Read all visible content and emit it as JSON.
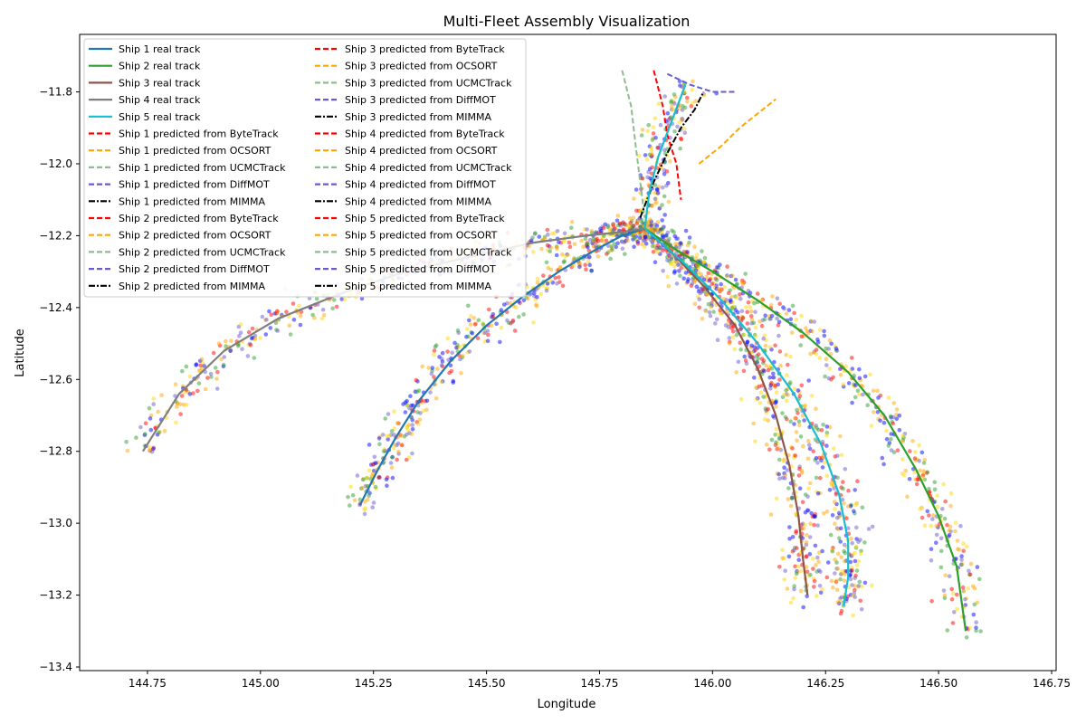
{
  "chart_data": {
    "type": "line",
    "title": "Multi-Fleet Assembly Visualization",
    "xlabel": "Longitude",
    "ylabel": "Latitude",
    "xlim": [
      144.6,
      146.76
    ],
    "ylim": [
      -13.41,
      -11.64
    ],
    "xticks": [
      144.75,
      145.0,
      145.25,
      145.5,
      145.75,
      146.0,
      146.25,
      146.5,
      146.75
    ],
    "xtick_labels": [
      "144.75",
      "145.00",
      "145.25",
      "145.50",
      "145.75",
      "146.00",
      "146.25",
      "146.50",
      "146.75"
    ],
    "yticks": [
      -13.4,
      -13.2,
      -13.0,
      -12.8,
      -12.6,
      -12.4,
      -12.2,
      -12.0,
      -11.8
    ],
    "ytick_labels": [
      "−13.4",
      "−13.2",
      "−13.0",
      "−12.8",
      "−12.6",
      "−12.4",
      "−12.2",
      "−12.0",
      "−11.8"
    ],
    "grid": false,
    "legend_position": "top-left",
    "colors": {
      "ship1": "#1f77b4",
      "ship2": "#2ca02c",
      "ship3": "#8c564b",
      "ship4": "#7f7f7f",
      "ship5": "#17becf",
      "bytetrack": "#ff0000",
      "ocsort": "#ffa500",
      "ucmctrack": "#8fbc8f",
      "diffmot": "#6a5acd",
      "mimma": "#000000"
    },
    "series": [
      {
        "name": "Ship 1 real track",
        "style": "solid",
        "color": "#1f77b4",
        "x": [
          145.22,
          145.26,
          145.3,
          145.35,
          145.42,
          145.5,
          145.58,
          145.66,
          145.74,
          145.8,
          145.85
        ],
        "y": [
          -12.95,
          -12.85,
          -12.76,
          -12.66,
          -12.55,
          -12.45,
          -12.37,
          -12.3,
          -12.24,
          -12.2,
          -12.18
        ]
      },
      {
        "name": "Ship 2 real track",
        "style": "solid",
        "color": "#2ca02c",
        "x": [
          145.85,
          145.92,
          146.0,
          146.1,
          146.2,
          146.3,
          146.38,
          146.45,
          146.5,
          146.54,
          146.56
        ],
        "y": [
          -12.18,
          -12.24,
          -12.3,
          -12.38,
          -12.47,
          -12.58,
          -12.7,
          -12.85,
          -12.98,
          -13.12,
          -13.3
        ]
      },
      {
        "name": "Ship 3 real track",
        "style": "solid",
        "color": "#8c564b",
        "x": [
          145.85,
          145.92,
          145.98,
          146.05,
          146.1,
          146.14,
          146.17,
          146.19,
          146.2,
          146.21
        ],
        "y": [
          -12.18,
          -12.26,
          -12.34,
          -12.45,
          -12.57,
          -12.7,
          -12.84,
          -12.98,
          -13.1,
          -13.2
        ]
      },
      {
        "name": "Ship 4 real track",
        "style": "solid",
        "color": "#7f7f7f",
        "x": [
          144.74,
          144.82,
          144.92,
          145.04,
          145.18,
          145.32,
          145.46,
          145.6,
          145.72,
          145.8,
          145.85
        ],
        "y": [
          -12.8,
          -12.64,
          -12.52,
          -12.43,
          -12.36,
          -12.3,
          -12.26,
          -12.22,
          -12.2,
          -12.19,
          -12.18
        ]
      },
      {
        "name": "Ship 5 real track",
        "style": "solid",
        "color": "#17becf",
        "x": [
          145.85,
          145.86,
          145.88,
          145.91,
          145.94,
          145.85,
          145.94,
          146.02,
          146.1,
          146.18,
          146.24,
          146.28,
          146.3,
          146.3,
          146.29
        ],
        "y": [
          -12.18,
          -12.08,
          -11.98,
          -11.88,
          -11.78,
          -12.18,
          -12.28,
          -12.38,
          -12.5,
          -12.64,
          -12.78,
          -12.92,
          -13.05,
          -13.15,
          -13.23
        ]
      },
      {
        "name": "Ship 1 predicted from ByteTrack",
        "style": "dashed",
        "color": "#ff0000"
      },
      {
        "name": "Ship 1 predicted from OCSORT",
        "style": "dashed",
        "color": "#ffa500"
      },
      {
        "name": "Ship 1 predicted from UCMCTrack",
        "style": "dashed",
        "color": "#8fbc8f"
      },
      {
        "name": "Ship 1 predicted from DiffMOT",
        "style": "dashed",
        "color": "#6a5acd"
      },
      {
        "name": "Ship 1 predicted from MIMMA",
        "style": "dashdot",
        "color": "#000000"
      },
      {
        "name": "Ship 2 predicted from ByteTrack",
        "style": "dashed",
        "color": "#ff0000"
      },
      {
        "name": "Ship 2 predicted from OCSORT",
        "style": "dashed",
        "color": "#ffa500"
      },
      {
        "name": "Ship 2 predicted from UCMCTrack",
        "style": "dashed",
        "color": "#8fbc8f"
      },
      {
        "name": "Ship 2 predicted from DiffMOT",
        "style": "dashed",
        "color": "#6a5acd"
      },
      {
        "name": "Ship 2 predicted from MIMMA",
        "style": "dashdot",
        "color": "#000000"
      },
      {
        "name": "Ship 3 predicted from ByteTrack",
        "style": "dashed",
        "color": "#ff0000",
        "x": [
          145.87,
          145.89,
          145.9,
          145.92,
          145.93
        ],
        "y": [
          -11.74,
          -11.84,
          -11.92,
          -12.0,
          -12.1
        ]
      },
      {
        "name": "Ship 3 predicted from OCSORT",
        "style": "dashed",
        "color": "#ffa500",
        "x": [
          145.97,
          146.02,
          146.06,
          146.1,
          146.14
        ],
        "y": [
          -12.0,
          -11.95,
          -11.9,
          -11.86,
          -11.82
        ]
      },
      {
        "name": "Ship 3 predicted from UCMCTrack",
        "style": "dashed",
        "color": "#8fbc8f",
        "x": [
          145.8,
          145.82,
          145.83,
          145.84,
          145.85
        ],
        "y": [
          -11.74,
          -11.84,
          -11.95,
          -12.05,
          -12.15
        ]
      },
      {
        "name": "Ship 3 predicted from DiffMOT",
        "style": "dashed",
        "color": "#6a5acd",
        "x": [
          145.9,
          145.95,
          146.0,
          146.03,
          146.05
        ],
        "y": [
          -11.75,
          -11.78,
          -11.8,
          -11.8,
          -11.8
        ]
      },
      {
        "name": "Ship 3 predicted from MIMMA",
        "style": "dashdot",
        "color": "#000000",
        "x": [
          145.84,
          145.87,
          145.9,
          145.93,
          145.96,
          145.98
        ],
        "y": [
          -12.15,
          -12.05,
          -11.97,
          -11.9,
          -11.85,
          -11.8
        ]
      },
      {
        "name": "Ship 4 predicted from ByteTrack",
        "style": "dashed",
        "color": "#ff0000"
      },
      {
        "name": "Ship 4 predicted from OCSORT",
        "style": "dashed",
        "color": "#ffa500"
      },
      {
        "name": "Ship 4 predicted from UCMCTrack",
        "style": "dashed",
        "color": "#8fbc8f"
      },
      {
        "name": "Ship 4 predicted from DiffMOT",
        "style": "dashed",
        "color": "#6a5acd"
      },
      {
        "name": "Ship 4 predicted from MIMMA",
        "style": "dashdot",
        "color": "#000000"
      },
      {
        "name": "Ship 5 predicted from ByteTrack",
        "style": "dashed",
        "color": "#ff0000"
      },
      {
        "name": "Ship 5 predicted from OCSORT",
        "style": "dashed",
        "color": "#ffa500"
      },
      {
        "name": "Ship 5 predicted from UCMCTrack",
        "style": "dashed",
        "color": "#8fbc8f"
      },
      {
        "name": "Ship 5 predicted from DiffMOT",
        "style": "dashed",
        "color": "#6a5acd"
      },
      {
        "name": "Ship 5 predicted from MIMMA",
        "style": "dashdot",
        "color": "#000000"
      }
    ],
    "scatter_colors": [
      "#ff0000",
      "#ffa500",
      "#ffd700",
      "#2ca02c",
      "#6a5acd",
      "#0000ff"
    ]
  }
}
